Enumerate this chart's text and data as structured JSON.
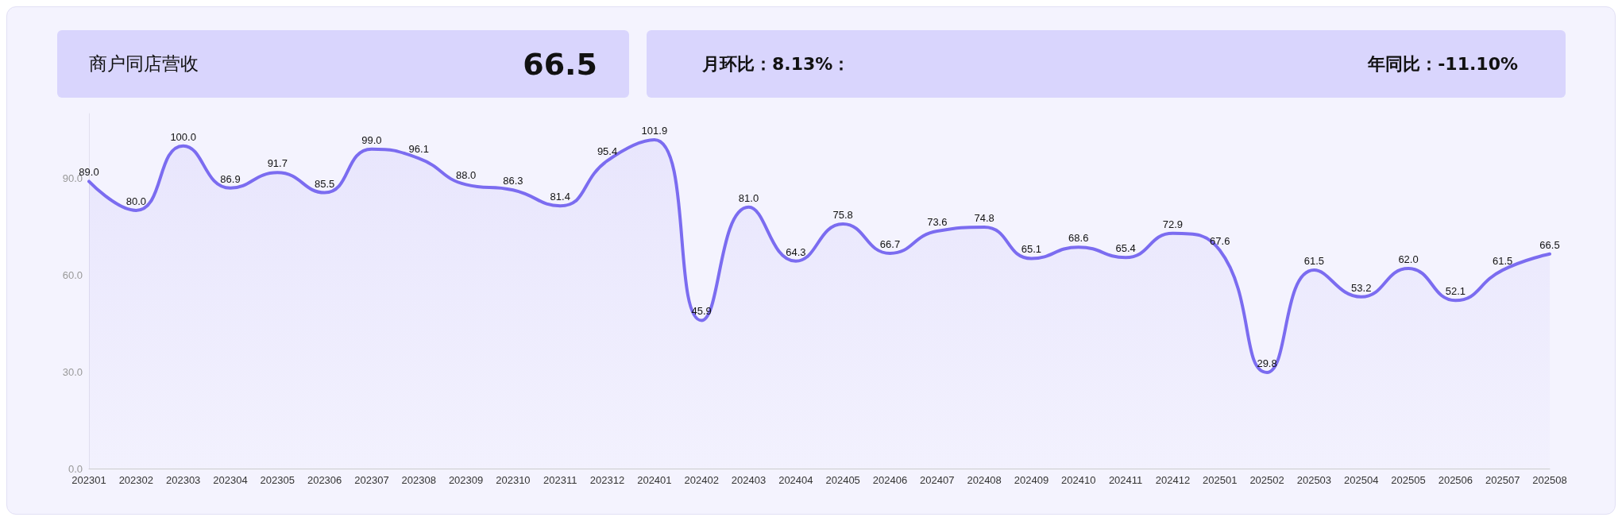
{
  "chart_data": {
    "type": "area",
    "title": "商户同店营收",
    "annotations": [
      "66.5",
      "月环比：8.13%：",
      "年同比：-11.10%"
    ],
    "categories": [
      "202301",
      "202302",
      "202303",
      "202304",
      "202305",
      "202306",
      "202307",
      "202308",
      "202309",
      "202310",
      "202311",
      "202312",
      "202401",
      "202402",
      "202403",
      "202404",
      "202405",
      "202406",
      "202407",
      "202408",
      "202409",
      "202410",
      "202411",
      "202412",
      "202501",
      "202502",
      "202503",
      "202504",
      "202505",
      "202506",
      "202507",
      "202508"
    ],
    "values": [
      89.0,
      80.0,
      100.0,
      86.9,
      91.7,
      85.5,
      99.0,
      96.1,
      88.0,
      86.3,
      81.4,
      95.4,
      101.9,
      45.9,
      81.0,
      64.3,
      75.8,
      66.7,
      73.6,
      74.8,
      65.1,
      68.6,
      65.4,
      72.9,
      67.6,
      29.8,
      61.5,
      53.2,
      62.0,
      52.1,
      61.5,
      66.5
    ],
    "value_labels": [
      "89.0",
      "80.0",
      "100.0",
      "86.9",
      "91.7",
      "85.5",
      "99.0",
      "96.1",
      "88.0",
      "86.3",
      "81.4",
      "95.4",
      "101.9",
      "45.9",
      "81.0",
      "64.3",
      "75.8",
      "66.7",
      "73.6",
      "74.8",
      "65.1",
      "68.6",
      "65.4",
      "72.9",
      "67.6",
      "29.8",
      "61.5",
      "53.2",
      "62.0",
      "52.1",
      "61.5",
      "66.5"
    ],
    "color": "#7b6cf0",
    "ylim": [
      0,
      110
    ],
    "yticks": [
      {
        "value": 0,
        "label": "0.0"
      },
      {
        "value": 30,
        "label": "30.0"
      },
      {
        "value": 60,
        "label": "60.0"
      },
      {
        "value": 90,
        "label": "90.0"
      }
    ],
    "grid": false,
    "marker": "none",
    "line_style": "solid"
  }
}
